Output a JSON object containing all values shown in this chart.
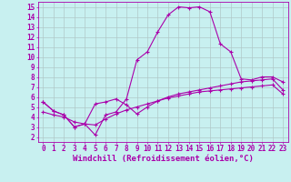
{
  "xlabel": "Windchill (Refroidissement éolien,°C)",
  "bg_color": "#c8f0f0",
  "line_color": "#aa00aa",
  "grid_color": "#b0c8c8",
  "xlim": [
    -0.5,
    23.5
  ],
  "ylim": [
    1.5,
    15.5
  ],
  "xticks": [
    0,
    1,
    2,
    3,
    4,
    5,
    6,
    7,
    8,
    9,
    10,
    11,
    12,
    13,
    14,
    15,
    16,
    17,
    18,
    19,
    20,
    21,
    22,
    23
  ],
  "yticks": [
    2,
    3,
    4,
    5,
    6,
    7,
    8,
    9,
    10,
    11,
    12,
    13,
    14,
    15
  ],
  "curve1_x": [
    0,
    1,
    2,
    3,
    4,
    5,
    6,
    7,
    8,
    9,
    10,
    11,
    12,
    13,
    14,
    15,
    16,
    17,
    18,
    19,
    20,
    21,
    22,
    23
  ],
  "curve1_y": [
    5.5,
    4.6,
    4.2,
    3.0,
    3.3,
    2.2,
    4.2,
    4.5,
    5.8,
    9.7,
    10.5,
    12.5,
    14.2,
    15.0,
    14.9,
    15.0,
    14.5,
    11.3,
    10.5,
    7.8,
    7.7,
    8.0,
    8.0,
    7.5
  ],
  "curve2_x": [
    0,
    1,
    2,
    3,
    4,
    5,
    6,
    7,
    8,
    9,
    10,
    11,
    12,
    13,
    14,
    15,
    16,
    17,
    18,
    19,
    20,
    21,
    22,
    23
  ],
  "curve2_y": [
    5.5,
    4.6,
    4.2,
    3.0,
    3.3,
    5.3,
    5.5,
    5.8,
    5.2,
    4.3,
    5.0,
    5.6,
    6.0,
    6.3,
    6.5,
    6.7,
    6.9,
    7.1,
    7.3,
    7.5,
    7.6,
    7.7,
    7.8,
    6.7
  ],
  "curve3_x": [
    0,
    1,
    2,
    3,
    4,
    5,
    6,
    7,
    8,
    9,
    10,
    11,
    12,
    13,
    14,
    15,
    16,
    17,
    18,
    19,
    20,
    21,
    22,
    23
  ],
  "curve3_y": [
    4.5,
    4.2,
    4.0,
    3.5,
    3.3,
    3.2,
    3.8,
    4.3,
    4.7,
    5.0,
    5.3,
    5.6,
    5.9,
    6.1,
    6.3,
    6.5,
    6.6,
    6.7,
    6.8,
    6.9,
    7.0,
    7.1,
    7.2,
    6.3
  ],
  "marker": "+",
  "markersize": 3,
  "linewidth": 0.8,
  "tick_fontsize": 5.5,
  "xlabel_fontsize": 6.5,
  "line_color_top": "#aa00aa",
  "line_color_mid": "#aa00aa",
  "line_color_bot": "#aa00aa"
}
